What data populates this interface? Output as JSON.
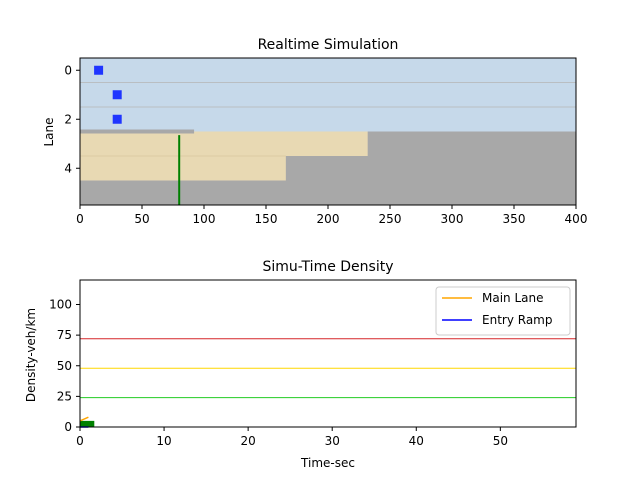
{
  "chart_data": [
    {
      "type": "heatmap",
      "title": "Realtime Simulation",
      "xlabel": "",
      "ylabel": "Lane",
      "xlim": [
        0,
        400
      ],
      "ylim": [
        5.5,
        -0.5
      ],
      "xticks": [
        0,
        50,
        100,
        150,
        200,
        250,
        300,
        350,
        400
      ],
      "yticks": [
        0,
        2,
        4
      ],
      "background_color": "#a8a8a8",
      "main_lane_color": "#c6d9ea",
      "ramp_color": "#e8d9b3",
      "vehicle_color": "#1f35ff",
      "main_lanes": {
        "lanes": [
          0,
          1,
          2
        ],
        "x": [
          0,
          400
        ]
      },
      "ramp_lanes": [
        {
          "lane": 3,
          "x": [
            0,
            232
          ]
        },
        {
          "lane": 4,
          "x": [
            0,
            166
          ]
        }
      ],
      "barrier": {
        "lane_boundary": 2.5,
        "x": [
          0,
          92
        ],
        "color": "#a8a8a8"
      },
      "signal_line": {
        "x": 80,
        "y": [
          2.65,
          5.5
        ],
        "color": "#008000"
      },
      "vehicles": [
        {
          "x": 15,
          "lane": 0
        },
        {
          "x": 30,
          "lane": 1
        },
        {
          "x": 30,
          "lane": 2
        }
      ]
    },
    {
      "type": "line",
      "title": "Simu-Time Density",
      "xlabel": "Time-sec",
      "ylabel": "Density-veh/km",
      "xlim": [
        0,
        59
      ],
      "ylim": [
        0,
        120
      ],
      "xticks": [
        0,
        10,
        20,
        30,
        40,
        50
      ],
      "yticks": [
        0,
        25,
        50,
        75,
        100
      ],
      "legend_position": "top-right",
      "series": [
        {
          "name": "Main Lane",
          "color": "#ffa500",
          "x": [
            0,
            1
          ],
          "y": [
            5,
            8
          ]
        },
        {
          "name": "Entry Ramp",
          "color": "#0000ff",
          "x": [
            0,
            1
          ],
          "y": [
            0,
            0
          ]
        }
      ],
      "threshold_lines": [
        {
          "y": 72,
          "color": "#d62728"
        },
        {
          "y": 48,
          "color": "#ffd700"
        },
        {
          "y": 24,
          "color": "#22cc22"
        }
      ],
      "status_bar": {
        "x": [
          0,
          1.7
        ],
        "y": [
          0,
          5
        ],
        "color": "#008000"
      }
    }
  ]
}
